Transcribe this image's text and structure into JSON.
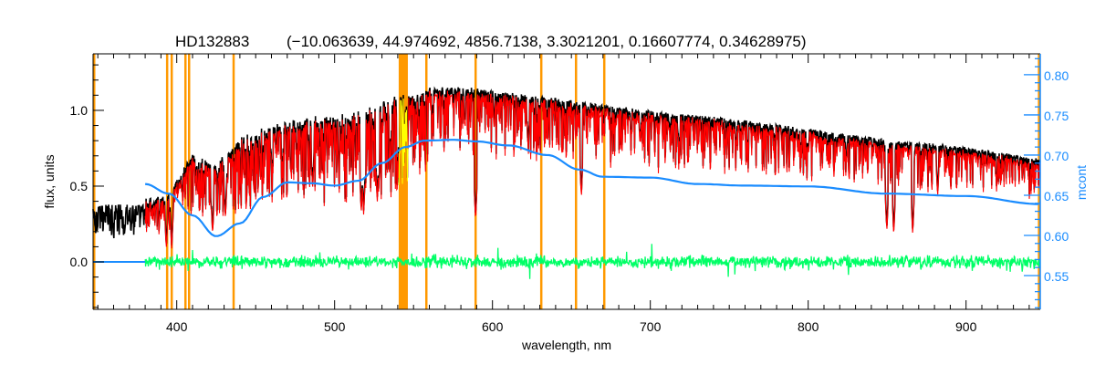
{
  "chart_data": {
    "type": "line",
    "title_object": "HD132883",
    "title_params": "(−10.063639, 44.974692, 4856.7138, 3.3021201, 0.16607774, 0.34628975)",
    "xlabel": "wavelength, nm",
    "ylabel": "flux, units",
    "y2label": "mcont",
    "xlim": [
      347,
      947
    ],
    "ylim": [
      -0.313,
      1.373
    ],
    "y2lim": [
      0.508,
      0.826
    ],
    "x_ticks": [
      400,
      500,
      600,
      700,
      800,
      900
    ],
    "x_minor_step": 10,
    "y_ticks": [
      0.0,
      0.5,
      1.0
    ],
    "y_tick_labels": [
      "0.0",
      "0.5",
      "1.0"
    ],
    "y_minor_step": 0.1,
    "y2_ticks": [
      0.55,
      0.6,
      0.65,
      0.7,
      0.75,
      0.8
    ],
    "y2_tick_labels": [
      "0.55",
      "0.60",
      "0.65",
      "0.70",
      "0.75",
      "0.80"
    ],
    "y2_minor_step": 0.01,
    "colors": {
      "observed": "#000000",
      "model": "#ff0000",
      "masked_model": "#ffff00",
      "residual": "#00ff66",
      "mcont": "#1a8cff",
      "mask": "#ff9900",
      "axis2": "#1a8cff"
    },
    "observed_continuum": {
      "wavelength": [
        347,
        380,
        395,
        410,
        425,
        440,
        460,
        480,
        500,
        520,
        540,
        560,
        580,
        600,
        650,
        700,
        750,
        800,
        850,
        900,
        947
      ],
      "flux": [
        0.42,
        0.42,
        0.45,
        0.72,
        0.65,
        0.82,
        0.92,
        0.96,
        0.97,
        1.02,
        1.1,
        1.16,
        1.16,
        1.13,
        1.07,
        1.0,
        0.95,
        0.88,
        0.81,
        0.76,
        0.68
      ]
    },
    "model_start_wavelength": 380,
    "strong_lines": [
      {
        "wavelength": 393.4,
        "min_flux": 0.1
      },
      {
        "wavelength": 396.8,
        "min_flux": 0.1
      },
      {
        "wavelength": 422.7,
        "min_flux": 0.2
      },
      {
        "wavelength": 430.8,
        "min_flux": 0.3
      },
      {
        "wavelength": 486.1,
        "min_flux": 0.5
      },
      {
        "wavelength": 516.9,
        "min_flux": 0.35
      },
      {
        "wavelength": 518.4,
        "min_flux": 0.33
      },
      {
        "wavelength": 527.0,
        "min_flux": 0.42
      },
      {
        "wavelength": 589.3,
        "min_flux": 0.3
      },
      {
        "wavelength": 656.3,
        "min_flux": 0.45
      },
      {
        "wavelength": 849.8,
        "min_flux": 0.22
      },
      {
        "wavelength": 854.2,
        "min_flux": 0.2
      },
      {
        "wavelength": 866.2,
        "min_flux": 0.2
      },
      {
        "wavelength": 882.0,
        "min_flux": 0.45
      }
    ],
    "residual": {
      "start_wavelength": 380,
      "center": 0.0,
      "sigma": 0.03
    },
    "mcont": {
      "flat_segment": {
        "wavelength": [
          347,
          380
        ],
        "flux": 0.0
      },
      "wavelength": [
        380,
        395,
        410,
        425,
        440,
        455,
        470,
        485,
        500,
        515,
        530,
        545,
        557,
        575,
        590,
        610,
        635,
        655,
        670,
        700,
        730,
        760,
        800,
        850,
        900,
        947
      ],
      "value": [
        0.664,
        0.652,
        0.625,
        0.599,
        0.615,
        0.648,
        0.666,
        0.665,
        0.662,
        0.668,
        0.69,
        0.71,
        0.718,
        0.719,
        0.717,
        0.712,
        0.7,
        0.682,
        0.673,
        0.672,
        0.664,
        0.662,
        0.661,
        0.652,
        0.649,
        0.639
      ]
    },
    "mask_regions": [
      [
        347,
        348.3
      ],
      [
        393.2,
        393.9
      ],
      [
        396.1,
        396.8
      ],
      [
        404.8,
        405.5
      ],
      [
        407.1,
        407.8
      ],
      [
        435.3,
        436.1
      ],
      [
        540.6,
        546.4
      ],
      [
        557.4,
        558.0
      ],
      [
        588.6,
        589.5
      ],
      [
        630.2,
        630.9
      ],
      [
        652.2,
        652.9
      ],
      [
        670.1,
        670.8
      ],
      [
        945.5,
        947
      ]
    ]
  }
}
